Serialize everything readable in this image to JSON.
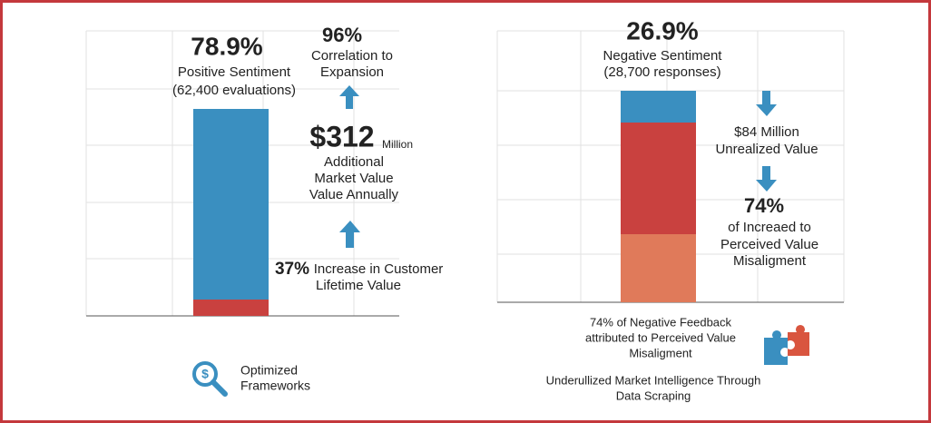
{
  "left": {
    "headline": "78.9%",
    "headline_caption": [
      "Positive Sentiment",
      "(62,400 evaluations)"
    ],
    "correlation": {
      "value": "96%",
      "lines": [
        "Correlation to",
        "Expansion"
      ]
    },
    "market": {
      "amount": "$312",
      "unit": "Million",
      "lines": [
        "Additional",
        "Market Value",
        "Value Annually"
      ]
    },
    "lifetime": {
      "value": "37%",
      "lines": [
        "Increase in Customer",
        "Lifetime Value"
      ]
    },
    "footer": [
      "Optimized",
      "Frameworks"
    ]
  },
  "right": {
    "headline": "26.9%",
    "headline_caption": [
      "Negative Sentiment",
      "(28,700 responses)"
    ],
    "unrealized": [
      "$84 Million",
      "Unrealized Value"
    ],
    "misalignment": {
      "value": "74%",
      "lines": [
        "of Increaed to",
        "Perceived Value",
        "Misaligment"
      ]
    },
    "note": [
      "74% of Negative Feedback",
      "attributed to Perceived Value",
      "Misaligment"
    ],
    "footer": [
      "Underullized Market Intelligence Through",
      "Data Scraping"
    ]
  }
}
